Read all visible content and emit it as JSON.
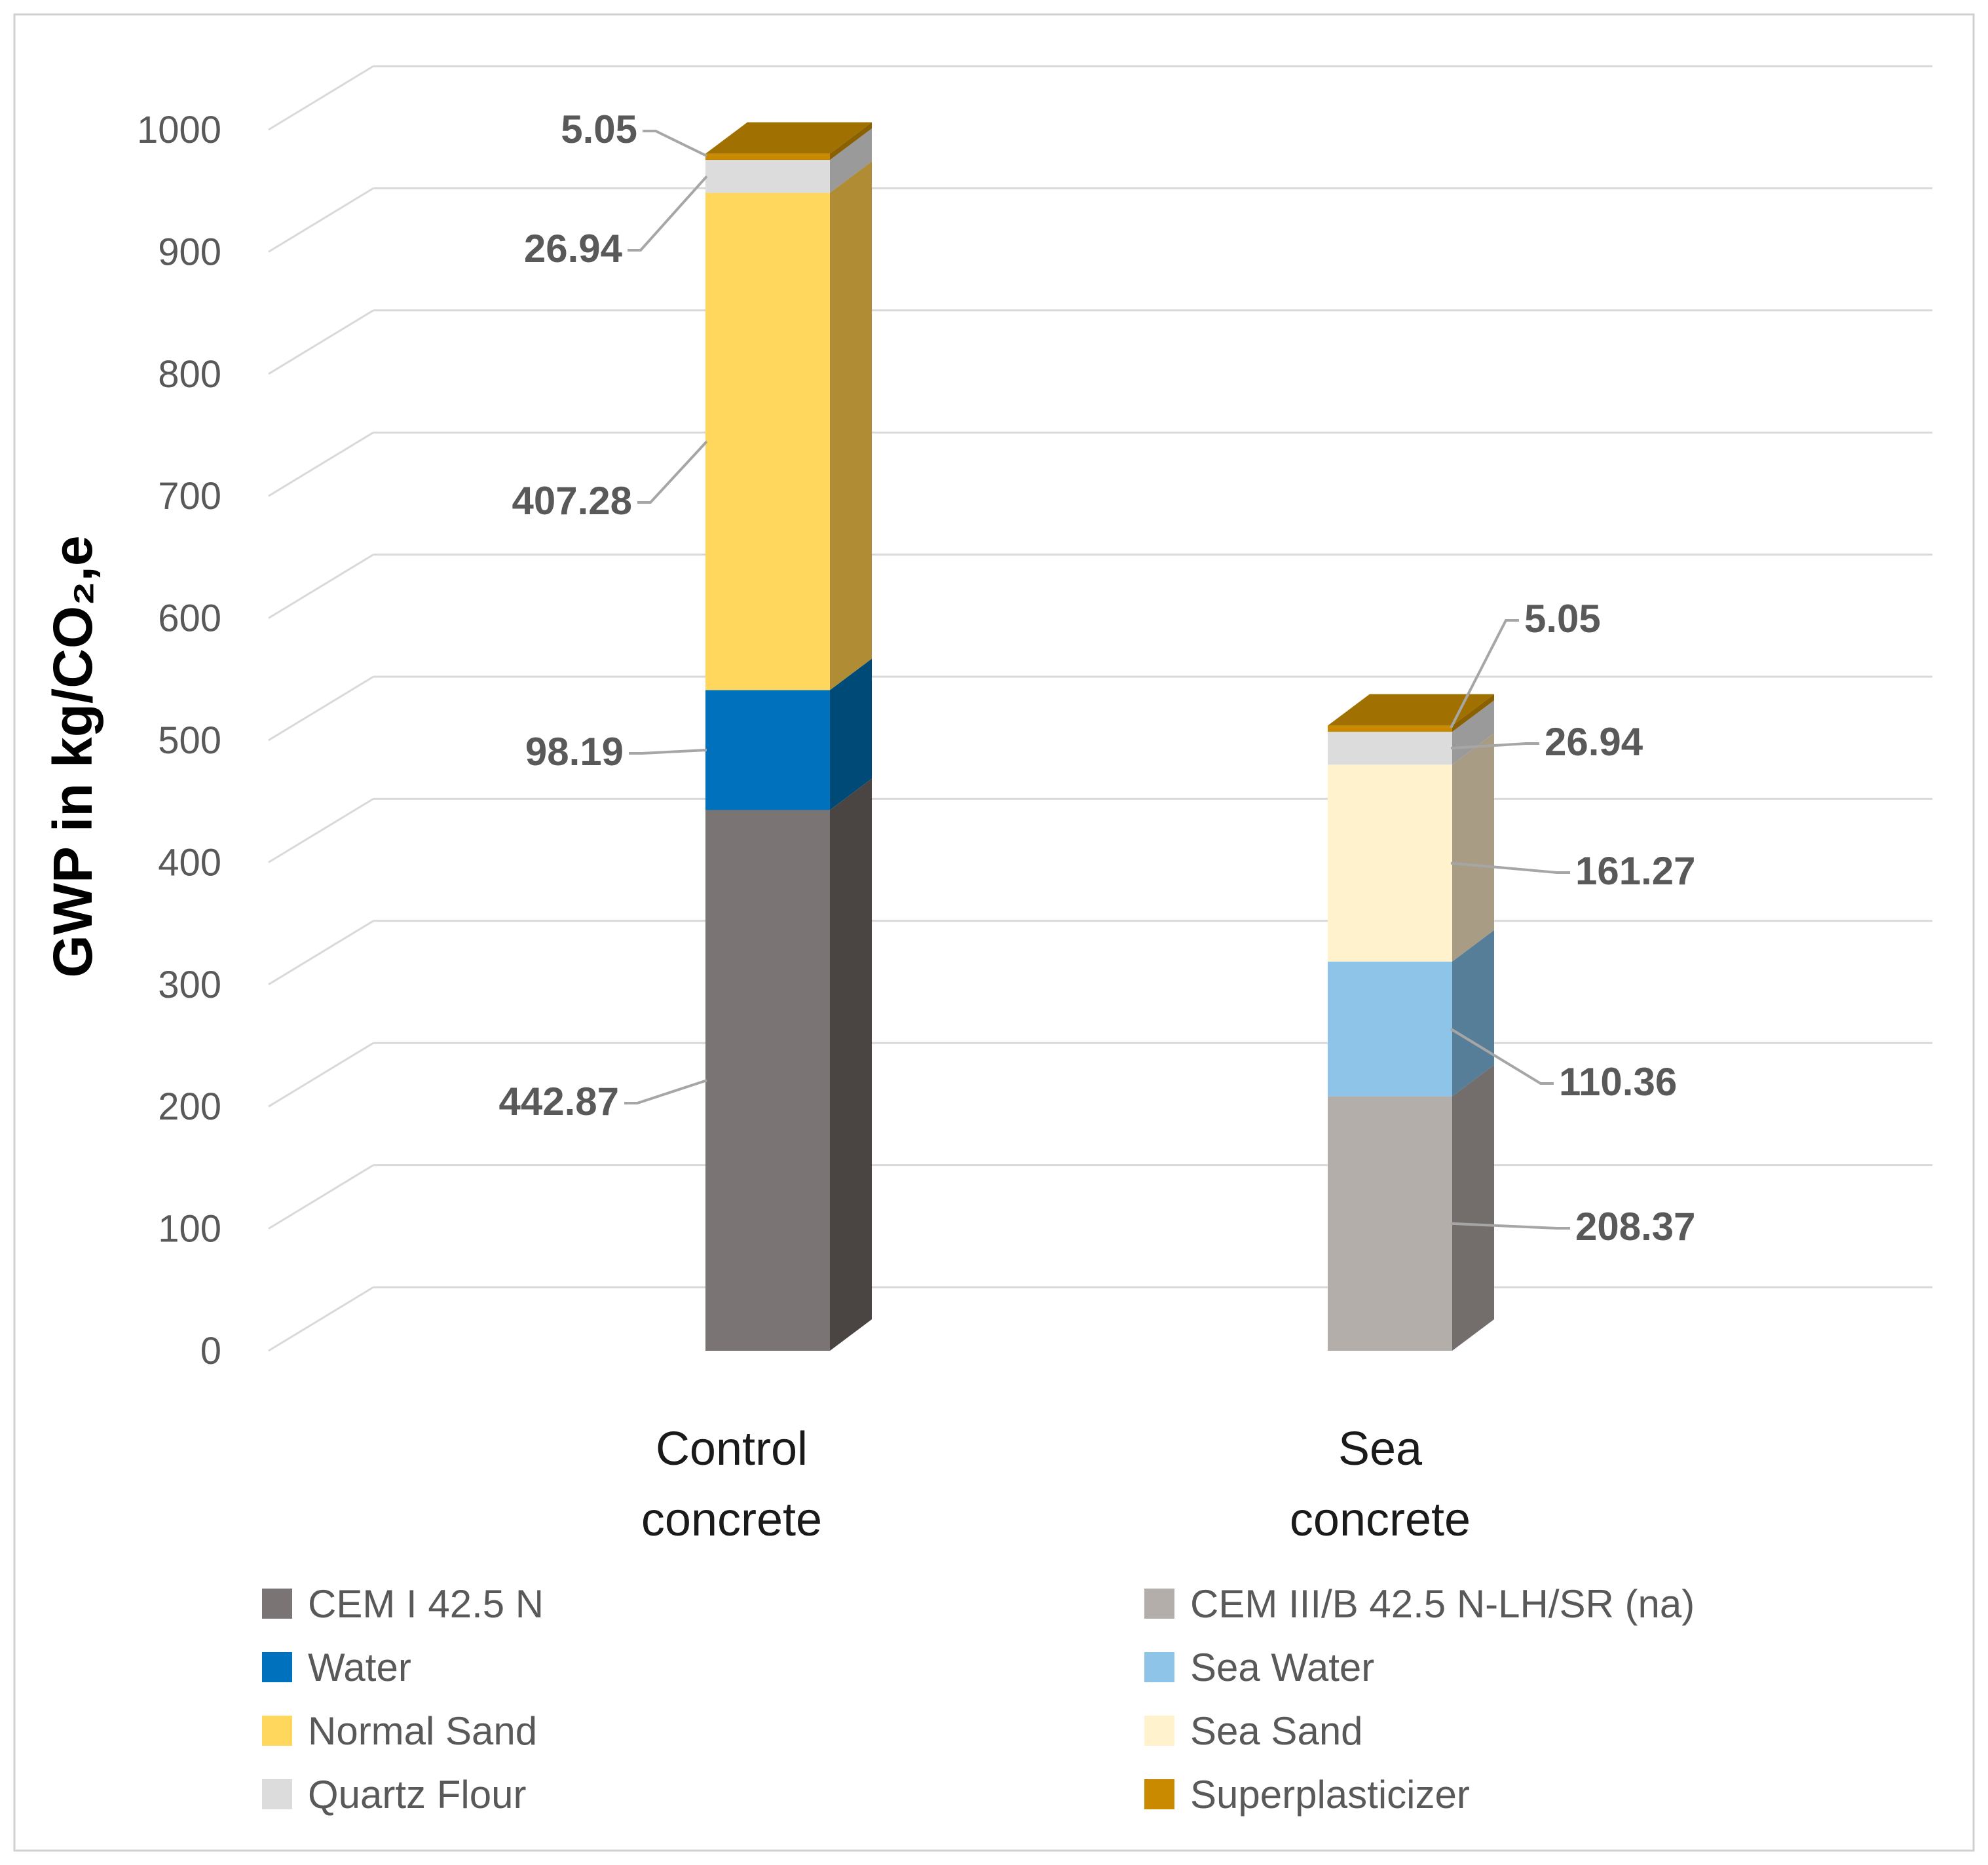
{
  "chart_data": {
    "type": "bar",
    "stacked": true,
    "three_d": true,
    "ylabel": "GWP in kg/CO₂,e",
    "ylim": [
      0,
      1000
    ],
    "yticks": [
      0,
      100,
      200,
      300,
      400,
      500,
      600,
      700,
      800,
      900,
      1000
    ],
    "grid": true,
    "categories": [
      "Control concrete",
      "Sea concrete"
    ],
    "category_lines": [
      [
        "Control",
        "concrete"
      ],
      [
        "Sea",
        "concrete"
      ]
    ],
    "stacks": [
      {
        "category": "Control concrete",
        "segments": [
          {
            "series": "CEM I 42.5 N",
            "value": 442.87,
            "label": "442.87",
            "color": "#7a7474",
            "side": "#4a4542"
          },
          {
            "series": "Water",
            "value": 98.19,
            "label": "98.19",
            "color": "#0072bd",
            "side": "#004a78"
          },
          {
            "series": "Normal Sand",
            "value": 407.28,
            "label": "407.28",
            "color": "#ffd75c",
            "side": "#b08c35"
          },
          {
            "series": "Quartz Flour",
            "value": 26.94,
            "label": "26.94",
            "color": "#dcdcdc",
            "side": "#9a9a9a"
          },
          {
            "series": "Superplasticizer",
            "value": 5.05,
            "label": "5.05",
            "color": "#c98a00",
            "side": "#8a6000"
          }
        ]
      },
      {
        "category": "Sea concrete",
        "segments": [
          {
            "series": "CEM III/B 42.5 N-LH/SR (na)",
            "value": 208.37,
            "label": "208.37",
            "color": "#b3aeaa",
            "side": "#736d6b"
          },
          {
            "series": "Sea Water",
            "value": 110.36,
            "label": "110.36",
            "color": "#8dc4e8",
            "side": "#577e99"
          },
          {
            "series": "Sea Sand",
            "value": 161.27,
            "label": "161.27",
            "color": "#fff2cc",
            "side": "#a89c84"
          },
          {
            "series": "Quartz Flour",
            "value": 26.94,
            "label": "26.94",
            "color": "#dcdcdc",
            "side": "#9a9a9a"
          },
          {
            "series": "Superplasticizer",
            "value": 5.05,
            "label": "5.05",
            "color": "#c98a00",
            "side": "#8a6000"
          }
        ]
      }
    ],
    "legend": {
      "placement": "bottom",
      "items": [
        {
          "name": "CEM I 42.5 N",
          "color": "#7a7474"
        },
        {
          "name": "CEM III/B 42.5 N-LH/SR (na)",
          "color": "#b3aeaa"
        },
        {
          "name": "Water",
          "color": "#0072bd"
        },
        {
          "name": "Sea Water",
          "color": "#8dc4e8"
        },
        {
          "name": "Normal Sand",
          "color": "#ffd75c"
        },
        {
          "name": "Sea Sand",
          "color": "#fff2cc"
        },
        {
          "name": "Quartz Flour",
          "color": "#dcdcdc"
        },
        {
          "name": "Superplasticizer",
          "color": "#c98a00"
        }
      ]
    }
  }
}
